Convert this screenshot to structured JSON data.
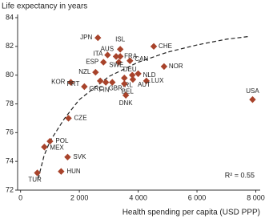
{
  "chart_data": {
    "type": "scatter",
    "title": "Life expectancy in years",
    "x_label": "Health spending per capita (USD PPP)",
    "annotation": "R² = 0.55",
    "color": "#a8432b",
    "trend_color": "#222222",
    "labels": [
      "JPN",
      "ISL",
      "AUS",
      "ITA",
      "ESP",
      "SWE",
      "FRA",
      "CAN",
      "CHE",
      "NOR",
      "NZL",
      "DEU",
      "NLD",
      "KOR",
      "PRT",
      "GRC",
      "FIN",
      "GBR",
      "IRL",
      "LUX",
      "AUT",
      "BEL",
      "DNK",
      "USA",
      "CZE",
      "POL",
      "MEX",
      "SVK",
      "HUN",
      "TUR"
    ],
    "x": [
      2630,
      3390,
      3250,
      2960,
      2820,
      3340,
      3390,
      3720,
      4530,
      4880,
      2550,
      3800,
      4000,
      1710,
      2170,
      2710,
      2900,
      3120,
      3530,
      4280,
      3820,
      3530,
      3580,
      7890,
      1630,
      1000,
      810,
      1600,
      1380,
      570
    ],
    "y": [
      82.6,
      81.8,
      81.3,
      81.4,
      80.9,
      80.9,
      81.3,
      81.0,
      82.0,
      80.6,
      80.2,
      80.0,
      80.1,
      79.5,
      79.2,
      79.6,
      79.5,
      79.5,
      79.8,
      79.6,
      79.7,
      79.4,
      78.6,
      78.3,
      77.0,
      75.4,
      75.0,
      74.3,
      73.3,
      73.2
    ],
    "trend": {
      "x": [
        600,
        800,
        1000,
        1500,
        2000,
        3000,
        4000,
        5000,
        6000,
        7000,
        7800
      ],
      "y": [
        72.8,
        74.4,
        75.4,
        77.0,
        78.3,
        79.9,
        80.9,
        81.6,
        82.1,
        82.5,
        82.7
      ]
    },
    "xlim": [
      -100,
      8150
    ],
    "ylim": [
      72,
      84
    ],
    "xticks": [
      0,
      {
        "value": 2000,
        "label": "2 000"
      },
      {
        "value": 4000,
        "label": "4 000"
      },
      {
        "value": 6000,
        "label": "6 000"
      },
      {
        "value": 8000,
        "label": "8 000"
      }
    ],
    "yticks": [
      72,
      74,
      76,
      78,
      80,
      82,
      84
    ],
    "grid": false
  }
}
